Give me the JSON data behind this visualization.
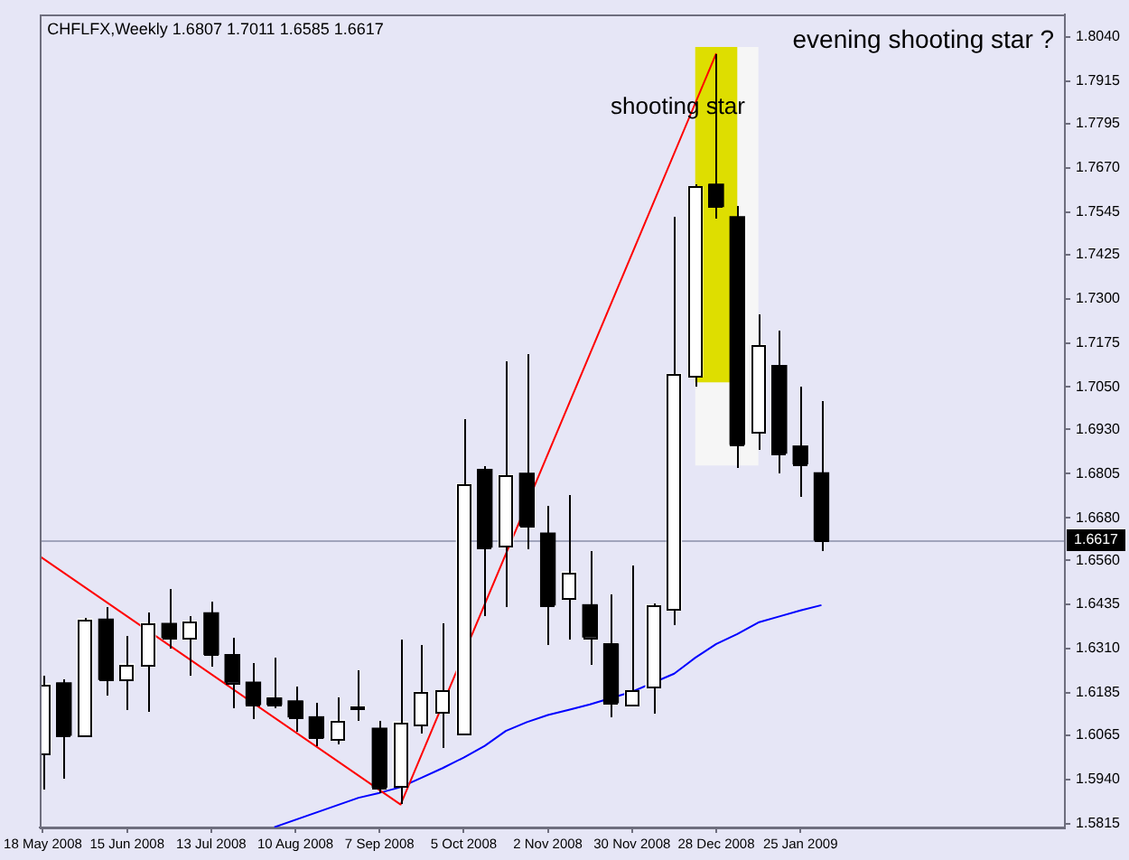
{
  "chart_data": {
    "type": "candlestick",
    "title": "CHFLFX,Weekly 1.6807 1.7011 1.6585 1.6617",
    "annotations": [
      "evening shooting star ?",
      {
        "text": "shooting star",
        "x": "2008-12-28",
        "y": 1.784
      }
    ],
    "x": [
      "2008-05-18",
      "2008-05-25",
      "2008-06-01",
      "2008-06-08",
      "2008-06-15",
      "2008-06-22",
      "2008-06-29",
      "2008-07-06",
      "2008-07-13",
      "2008-07-20",
      "2008-07-27",
      "2008-08-03",
      "2008-08-10",
      "2008-08-17",
      "2008-08-24",
      "2008-08-31",
      "2008-09-07",
      "2008-09-14",
      "2008-09-21",
      "2008-09-28",
      "2008-10-05",
      "2008-10-12",
      "2008-10-19",
      "2008-10-26",
      "2008-11-02",
      "2008-11-09",
      "2008-11-16",
      "2008-11-23",
      "2008-11-30",
      "2008-12-07",
      "2008-12-14",
      "2008-12-21",
      "2008-12-28",
      "2009-01-04",
      "2009-01-11",
      "2009-01-18",
      "2009-01-25",
      "2009-02-01"
    ],
    "ohlc": [
      [
        1.6013,
        1.6234,
        1.591,
        1.6209
      ],
      [
        1.6213,
        1.6223,
        1.5943,
        1.6065
      ],
      [
        1.6065,
        1.6396,
        1.6058,
        1.6393
      ],
      [
        1.6393,
        1.6429,
        1.6175,
        1.6223
      ],
      [
        1.6223,
        1.6348,
        1.6138,
        1.6266
      ],
      [
        1.6266,
        1.6413,
        1.613,
        1.6384
      ],
      [
        1.6381,
        1.6481,
        1.6309,
        1.6341
      ],
      [
        1.6341,
        1.6401,
        1.6233,
        1.6386
      ],
      [
        1.6411,
        1.6441,
        1.6259,
        1.6294
      ],
      [
        1.6293,
        1.6343,
        1.614,
        1.6215
      ],
      [
        1.6215,
        1.6268,
        1.611,
        1.6152
      ],
      [
        1.617,
        1.6284,
        1.614,
        1.6152
      ],
      [
        1.6162,
        1.6205,
        1.6077,
        1.6117
      ],
      [
        1.6117,
        1.6155,
        1.6035,
        1.6058
      ],
      [
        1.6055,
        1.6172,
        1.6038,
        1.6107
      ],
      [
        1.614,
        1.6251,
        1.6107,
        1.614
      ],
      [
        1.6085,
        1.6107,
        1.5902,
        1.5918
      ],
      [
        1.5922,
        1.6338,
        1.5869,
        1.6102
      ],
      [
        1.6093,
        1.6321,
        1.6072,
        1.6188
      ],
      [
        1.6132,
        1.6381,
        1.6027,
        1.619
      ],
      [
        1.6072,
        1.6958,
        1.6068,
        1.6776
      ],
      [
        1.6817,
        1.6827,
        1.6401,
        1.6597
      ],
      [
        1.6601,
        1.7121,
        1.6426,
        1.6801
      ],
      [
        1.6806,
        1.7141,
        1.6592,
        1.6657
      ],
      [
        1.6637,
        1.6714,
        1.6318,
        1.6434
      ],
      [
        1.6451,
        1.6742,
        1.6334,
        1.6526
      ],
      [
        1.6434,
        1.6584,
        1.6264,
        1.6343
      ],
      [
        1.6323,
        1.6463,
        1.6115,
        1.6157
      ],
      [
        1.6152,
        1.6546,
        1.615,
        1.619
      ],
      [
        1.6201,
        1.6439,
        1.6127,
        1.6434
      ],
      [
        1.6421,
        1.7532,
        1.6376,
        1.7087
      ],
      [
        1.708,
        1.7624,
        1.705,
        1.7616
      ],
      [
        1.7624,
        1.7994,
        1.7524,
        1.7561
      ],
      [
        1.7532,
        1.7561,
        1.682,
        1.6888
      ],
      [
        1.6923,
        1.7255,
        1.6872,
        1.717
      ],
      [
        1.7111,
        1.7211,
        1.6804,
        1.6863
      ],
      [
        1.6883,
        1.705,
        1.6739,
        1.6833
      ],
      [
        1.6807,
        1.7011,
        1.6585,
        1.6617
      ]
    ],
    "colors": [
      "#ffffff",
      "#000000",
      "#ffffff",
      "#000000",
      "#ffffff",
      "#ffffff",
      "#000000",
      "#ffffff",
      "#000000",
      "#000000",
      "#000000",
      "#000000",
      "#000000",
      "#000000",
      "#ffffff",
      "#ffffff",
      "#000000",
      "#ffffff",
      "#ffffff",
      "#ffffff",
      "#ffffff",
      "#000000",
      "#ffffff",
      "#000000",
      "#000000",
      "#ffffff",
      "#000000",
      "#000000",
      "#ffffff",
      "#ffffff",
      "#ffffff",
      "#ffffff",
      "#000000",
      "#000000",
      "#ffffff",
      "#000000",
      "#000000",
      "#000000"
    ],
    "series": [
      {
        "type": "line",
        "x": [
          "2008-12-21",
          "2009-01-11"
        ],
        "values": [
          null,
          null
        ],
        "lower": [
          1.6828,
          1.6828
        ],
        "upper": [
          1.8012,
          1.8012
        ],
        "color": "#f6f6f6"
      },
      {
        "type": "line",
        "x": [
          "2008-12-21",
          "2009-01-04"
        ],
        "values": [
          null,
          null
        ],
        "lower": [
          1.7063,
          1.7063
        ],
        "upper": [
          1.8012,
          1.8012
        ],
        "color": "#dede00"
      },
      {
        "type": "line",
        "x": [
          "2008-05-17",
          "2008-09-14",
          "2008-12-28"
        ],
        "values": [
          1.6571,
          1.5869,
          1.7994
        ],
        "color": "#ff0000"
      },
      {
        "type": "line",
        "x": [
          "2008-08-03",
          "2008-08-31",
          "2008-09-07",
          "2008-09-14",
          "2008-09-21",
          "2008-09-28",
          "2008-10-05",
          "2008-10-12",
          "2008-10-19",
          "2008-10-26",
          "2008-11-02",
          "2008-11-09",
          "2008-11-16",
          "2008-11-30",
          "2008-12-14",
          "2008-12-21",
          "2008-12-28",
          "2009-01-04",
          "2009-01-11",
          "2009-01-18",
          "2009-01-25",
          "2009-02-01"
        ],
        "values": [
          1.5805,
          1.5888,
          1.5902,
          1.5918,
          1.5945,
          1.5972,
          1.6002,
          1.6035,
          1.6077,
          1.6102,
          1.6122,
          1.6137,
          1.6152,
          1.6188,
          1.6239,
          1.6284,
          1.6323,
          1.6351,
          1.6384,
          1.6401,
          1.6418,
          1.6433
        ],
        "color": "#0000ff"
      }
    ],
    "xlim": [
      "2008-05-17",
      "2009-04-23"
    ],
    "xticks": [
      {
        "value": "2008-05-18",
        "label": "18 May 2008"
      },
      {
        "value": "2008-06-15",
        "label": "15 Jun 2008"
      },
      {
        "value": "2008-07-13",
        "label": "13 Jul 2008"
      },
      {
        "value": "2008-08-10",
        "label": "10 Aug 2008"
      },
      {
        "value": "2008-09-07",
        "label": "7 Sep 2008"
      },
      {
        "value": "2008-10-05",
        "label": "5 Oct 2008"
      },
      {
        "value": "2008-11-02",
        "label": "2 Nov 2008"
      },
      {
        "value": "2008-11-30",
        "label": "30 Nov 2008"
      },
      {
        "value": "2008-12-28",
        "label": "28 Dec 2008"
      },
      {
        "value": "2009-01-25",
        "label": "25 Jan 2009"
      }
    ],
    "ylim": [
      1.5804,
      1.8105
    ],
    "yticks": [
      1.5815,
      {
        "value": 1.594,
        "label": "1.5940"
      },
      1.6065,
      1.6185,
      {
        "value": 1.631,
        "label": "1.6310"
      },
      1.6435,
      {
        "value": 1.656,
        "label": "1.6560"
      },
      {
        "value": 1.668,
        "label": "1.6680"
      },
      1.6805,
      {
        "value": 1.693,
        "label": "1.6930"
      },
      {
        "value": 1.705,
        "label": "1.7050"
      },
      1.7175,
      {
        "value": 1.73,
        "label": "1.7300"
      },
      1.7425,
      1.7545,
      {
        "value": 1.767,
        "label": "1.7670"
      },
      1.7795,
      1.7915,
      {
        "value": 1.804,
        "label": "1.8040"
      }
    ],
    "ref_lines": [
      {
        "axis": "y",
        "value": 1.6617,
        "label": "1.6617",
        "color": "#a0a4bc"
      }
    ]
  }
}
